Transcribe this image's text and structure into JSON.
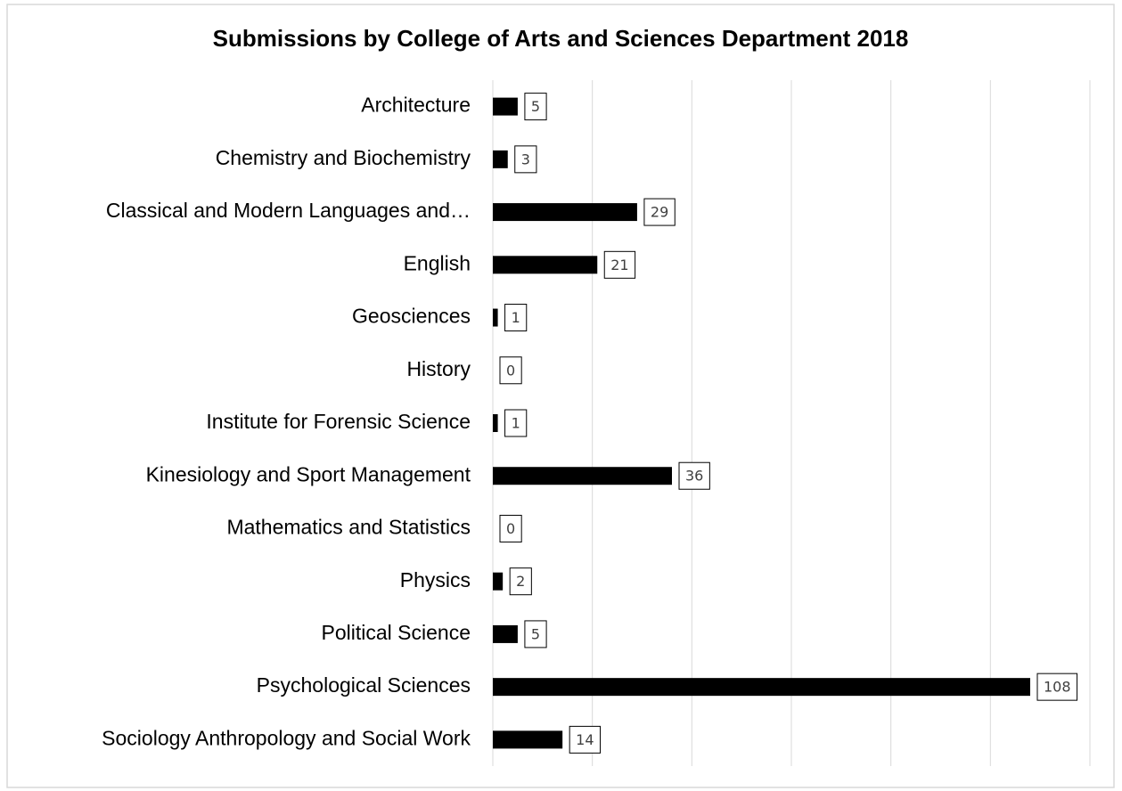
{
  "chart_data": {
    "type": "barh",
    "title": "Submissions by College of Arts and Sciences Department 2018",
    "categories": [
      "Architecture",
      "Chemistry and Biochemistry",
      "Classical and Modern Languages and…",
      "English",
      "Geosciences",
      "History",
      "Institute for Forensic Science",
      "Kinesiology and Sport Management",
      "Mathematics and Statistics",
      "Physics",
      "Political Science",
      "Psychological Sciences",
      "Sociology Anthropology and Social Work"
    ],
    "values": [
      5,
      3,
      29,
      21,
      1,
      0,
      1,
      36,
      0,
      2,
      5,
      108,
      14
    ],
    "color": "#000000",
    "xlim": [
      0,
      120
    ],
    "xticks": [
      0,
      20,
      40,
      60,
      80,
      100,
      120
    ],
    "grid": true
  }
}
